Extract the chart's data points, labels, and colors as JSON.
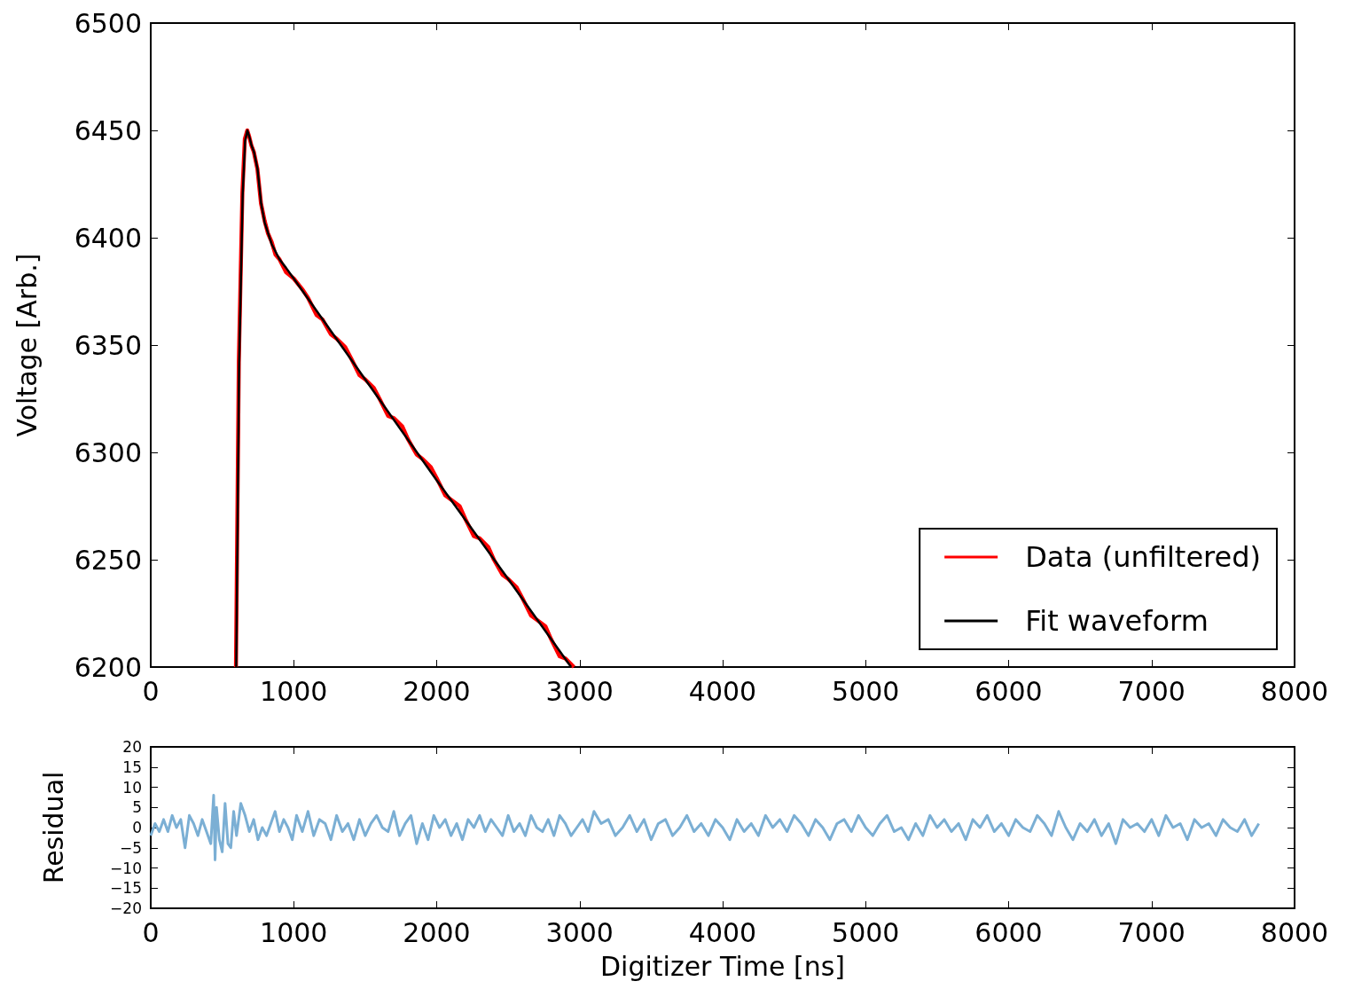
{
  "chart_data": [
    {
      "type": "line",
      "ylabel": "Voltage [Arb.]",
      "xlim": [
        0,
        8000
      ],
      "xticks": [
        0,
        1000,
        2000,
        3000,
        4000,
        5000,
        6000,
        7000,
        8000
      ],
      "ylim": [
        6200,
        6500
      ],
      "yticks": [
        6200,
        6250,
        6300,
        6350,
        6400,
        6450,
        6500
      ],
      "legend": "bottom right",
      "series": [
        {
          "name": "Data (unfiltered)",
          "color": "#ff0000",
          "x": [
            596,
            616,
            641,
            658,
            675,
            689,
            704,
            721,
            746,
            771,
            796,
            820,
            846,
            873,
            900,
            946,
            1000,
            1060,
            1100,
            1160,
            1200,
            1260,
            1300,
            1360,
            1400,
            1460,
            1500,
            1560,
            1600,
            1660,
            1700,
            1760,
            1800,
            1860,
            1900,
            1960,
            2000,
            2060,
            2100,
            2160,
            2200,
            2260,
            2300,
            2360,
            2400,
            2460,
            2500,
            2560,
            2600,
            2660,
            2700,
            2760,
            2800,
            2860,
            2900,
            2960
          ],
          "values": [
            6200,
            6342,
            6421,
            6446,
            6450,
            6447,
            6443,
            6440,
            6432,
            6416,
            6408,
            6402,
            6398,
            6392,
            6390,
            6384,
            6381,
            6376,
            6372,
            6364,
            6362,
            6355,
            6353,
            6349,
            6344,
            6336,
            6334,
            6330,
            6325,
            6317,
            6316,
            6312,
            6306,
            6299,
            6297,
            6293,
            6288,
            6280,
            6278,
            6275,
            6269,
            6261,
            6260,
            6256,
            6250,
            6243,
            6241,
            6237,
            6232,
            6224,
            6222,
            6219,
            6213,
            6205,
            6204,
            6200
          ]
        },
        {
          "name": "Fit waveform",
          "color": "#000000",
          "x": [
            598,
            618,
            643,
            660,
            676,
            690,
            705,
            722,
            747,
            772,
            797,
            846,
            900,
            946,
            1000,
            1500,
            2000,
            2500,
            2940
          ],
          "values": [
            6200,
            6340,
            6420,
            6445,
            6450,
            6447,
            6443,
            6440,
            6432,
            6416,
            6407,
            6397,
            6390,
            6386,
            6381,
            6334,
            6287,
            6241,
            6200
          ]
        }
      ]
    },
    {
      "type": "line",
      "xlabel": "Digitizer Time [ns]",
      "ylabel": "Residual",
      "xlim": [
        0,
        8000
      ],
      "xticks": [
        0,
        1000,
        2000,
        3000,
        4000,
        5000,
        6000,
        7000,
        8000
      ],
      "ylim": [
        -20,
        20
      ],
      "yticks": [
        {
          "value": -20,
          "label": "−20"
        },
        {
          "value": -15,
          "label": "−15"
        },
        {
          "value": -10,
          "label": "−10"
        },
        {
          "value": -5,
          "label": "−5"
        },
        0,
        5,
        10,
        15,
        20
      ],
      "series": [
        {
          "color": "#7bafd4",
          "x": [
            0,
            30,
            60,
            90,
            120,
            150,
            180,
            210,
            240,
            270,
            300,
            330,
            360,
            390,
            420,
            440,
            450,
            460,
            480,
            500,
            520,
            540,
            560,
            580,
            600,
            630,
            660,
            690,
            720,
            750,
            780,
            810,
            840,
            870,
            900,
            930,
            960,
            990,
            1020,
            1060,
            1100,
            1140,
            1180,
            1220,
            1260,
            1300,
            1340,
            1380,
            1420,
            1460,
            1500,
            1540,
            1580,
            1620,
            1660,
            1700,
            1740,
            1780,
            1820,
            1860,
            1900,
            1940,
            1980,
            2020,
            2060,
            2100,
            2140,
            2180,
            2220,
            2260,
            2300,
            2340,
            2380,
            2420,
            2460,
            2500,
            2540,
            2580,
            2620,
            2660,
            2700,
            2740,
            2780,
            2820,
            2860,
            2900,
            2940,
            2980,
            3020,
            3060,
            3100,
            3150,
            3200,
            3250,
            3300,
            3350,
            3400,
            3450,
            3500,
            3550,
            3600,
            3650,
            3700,
            3750,
            3800,
            3850,
            3900,
            3950,
            4000,
            4050,
            4100,
            4150,
            4200,
            4250,
            4300,
            4350,
            4400,
            4450,
            4500,
            4550,
            4600,
            4650,
            4700,
            4750,
            4800,
            4850,
            4900,
            4950,
            5000,
            5050,
            5100,
            5150,
            5200,
            5250,
            5300,
            5350,
            5400,
            5450,
            5500,
            5550,
            5600,
            5650,
            5700,
            5750,
            5800,
            5850,
            5900,
            5950,
            6000,
            6050,
            6100,
            6150,
            6200,
            6250,
            6300,
            6350,
            6400,
            6450,
            6500,
            6550,
            6600,
            6650,
            6700,
            6750,
            6800,
            6850,
            6900,
            6950,
            7000,
            7050,
            7100,
            7150,
            7200,
            7250,
            7300,
            7350,
            7400,
            7450,
            7500,
            7550,
            7600,
            7650,
            7700,
            7750
          ],
          "values": [
            -2,
            1,
            -1,
            2,
            -1,
            3,
            0,
            2,
            -5,
            3,
            1,
            -2,
            2,
            -1,
            -4,
            8,
            -8,
            5,
            -3,
            -6,
            6,
            -4,
            -5,
            4,
            -2,
            6,
            3,
            -1,
            2,
            -3,
            0,
            -2,
            1,
            4,
            -1,
            2,
            0,
            -3,
            3,
            -1,
            4,
            -2,
            2,
            1,
            -3,
            3,
            -1,
            1,
            -3,
            2,
            -2,
            1,
            3,
            0,
            -1,
            4,
            -2,
            1,
            3,
            -4,
            1,
            -3,
            3,
            0,
            2,
            -2,
            1,
            -3,
            2,
            0,
            3,
            -1,
            2,
            0,
            -2,
            3,
            -1,
            1,
            -2,
            3,
            0,
            -1,
            2,
            -2,
            3,
            1,
            -2,
            0,
            2,
            -1,
            4,
            1,
            2,
            -2,
            0,
            3,
            -1,
            2,
            -3,
            1,
            2,
            -2,
            0,
            3,
            -1,
            1,
            -2,
            2,
            0,
            -3,
            2,
            -1,
            1,
            -2,
            3,
            0,
            2,
            -1,
            3,
            1,
            -2,
            2,
            0,
            -3,
            1,
            2,
            -1,
            3,
            0,
            -2,
            1,
            3,
            -1,
            0,
            -3,
            1,
            -2,
            3,
            0,
            2,
            -1,
            1,
            -3,
            2,
            0,
            3,
            -1,
            1,
            -2,
            2,
            0,
            -1,
            3,
            1,
            -2,
            4,
            0,
            -3,
            1,
            -1,
            2,
            -2,
            1,
            -4,
            2,
            0,
            1,
            -1,
            2,
            -2,
            3,
            0,
            1,
            -3,
            2,
            0,
            1,
            -2,
            2,
            0,
            -1,
            2,
            -2,
            1
          ]
        }
      ]
    }
  ]
}
